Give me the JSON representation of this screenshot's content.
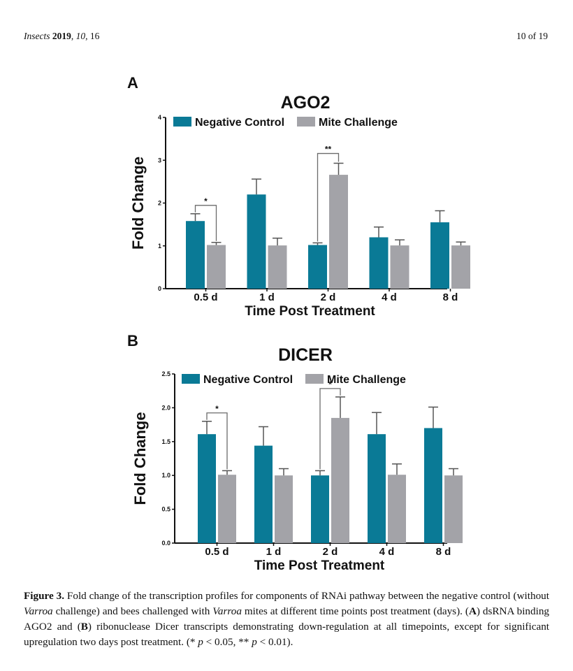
{
  "header": {
    "journal": "Insects",
    "year": "2019",
    "volume": "10",
    "article": "16",
    "page_indicator": "10 of 19"
  },
  "colors": {
    "negative_control": "#0a7a96",
    "mite_challenge": "#a3a3a8",
    "error_bar": "#555555",
    "axis": "#111111"
  },
  "chart_data": [
    {
      "panel": "A",
      "type": "bar",
      "title": "AGO2",
      "xlabel": "Time Post Treatment",
      "ylabel": "Fold Change",
      "categories": [
        "0.5 d",
        "1 d",
        "2 d",
        "4 d",
        "8 d"
      ],
      "ylim": [
        0,
        4
      ],
      "yticks": [
        0,
        1,
        2,
        3,
        4
      ],
      "ytick_labels": [
        "0",
        "1",
        "2",
        "3",
        "4"
      ],
      "legend": [
        "Negative Control",
        "Mite Challenge"
      ],
      "legend_position": "top",
      "grid": false,
      "series": [
        {
          "name": "Negative Control",
          "values": [
            1.58,
            2.2,
            1.02,
            1.2,
            1.55
          ],
          "errors": [
            0.17,
            0.36,
            0.05,
            0.24,
            0.27
          ]
        },
        {
          "name": "Mite Challenge",
          "values": [
            1.02,
            1.01,
            2.66,
            1.01,
            1.01
          ],
          "errors": [
            0.06,
            0.17,
            0.27,
            0.13,
            0.08
          ]
        }
      ],
      "significance": [
        {
          "category": "0.5 d",
          "label": "*"
        },
        {
          "category": "2 d",
          "label": "**"
        }
      ]
    },
    {
      "panel": "B",
      "type": "bar",
      "title": "DICER",
      "xlabel": "Time Post Treatment",
      "ylabel": "Fold Change",
      "categories": [
        "0.5 d",
        "1 d",
        "2 d",
        "4 d",
        "8 d"
      ],
      "ylim": [
        0,
        2.5
      ],
      "yticks": [
        0,
        0.5,
        1,
        1.5,
        2,
        2.5
      ],
      "ytick_labels": [
        "0.0",
        "0.5",
        "1.0",
        "1.5",
        "2.0",
        "2.5"
      ],
      "legend": [
        "Negative Control",
        "Mite Challenge"
      ],
      "legend_position": "top",
      "grid": false,
      "series": [
        {
          "name": "Negative Control",
          "values": [
            1.61,
            1.44,
            1.0,
            1.61,
            1.7
          ],
          "errors": [
            0.19,
            0.28,
            0.07,
            0.32,
            0.31
          ]
        },
        {
          "name": "Mite Challenge",
          "values": [
            1.01,
            1.0,
            1.85,
            1.01,
            1.0
          ],
          "errors": [
            0.06,
            0.1,
            0.31,
            0.16,
            0.1
          ]
        }
      ],
      "significance": [
        {
          "category": "0.5 d",
          "label": "*"
        },
        {
          "category": "2 d",
          "label": "*"
        }
      ]
    }
  ],
  "caption": {
    "label": "Figure 3.",
    "t1": " Fold change of the transcription profiles for components of RNAi pathway between the negative control (without ",
    "i1": "Varroa",
    "t2": " challenge) and bees challenged with ",
    "i2": "Varroa",
    "t3": " mites at different time points post treatment (days).  (",
    "b1": "A",
    "t4": ") dsRNA binding AGO2 and (",
    "b2": "B",
    "t5": ") ribonuclease Dicer transcripts demonstrating down-regulation at all timepoints, except for significant upregulation two days post treatment. (* ",
    "i3": "p",
    "t6": " < 0.05, ** ",
    "i4": "p",
    "t7": " < 0.01)."
  }
}
